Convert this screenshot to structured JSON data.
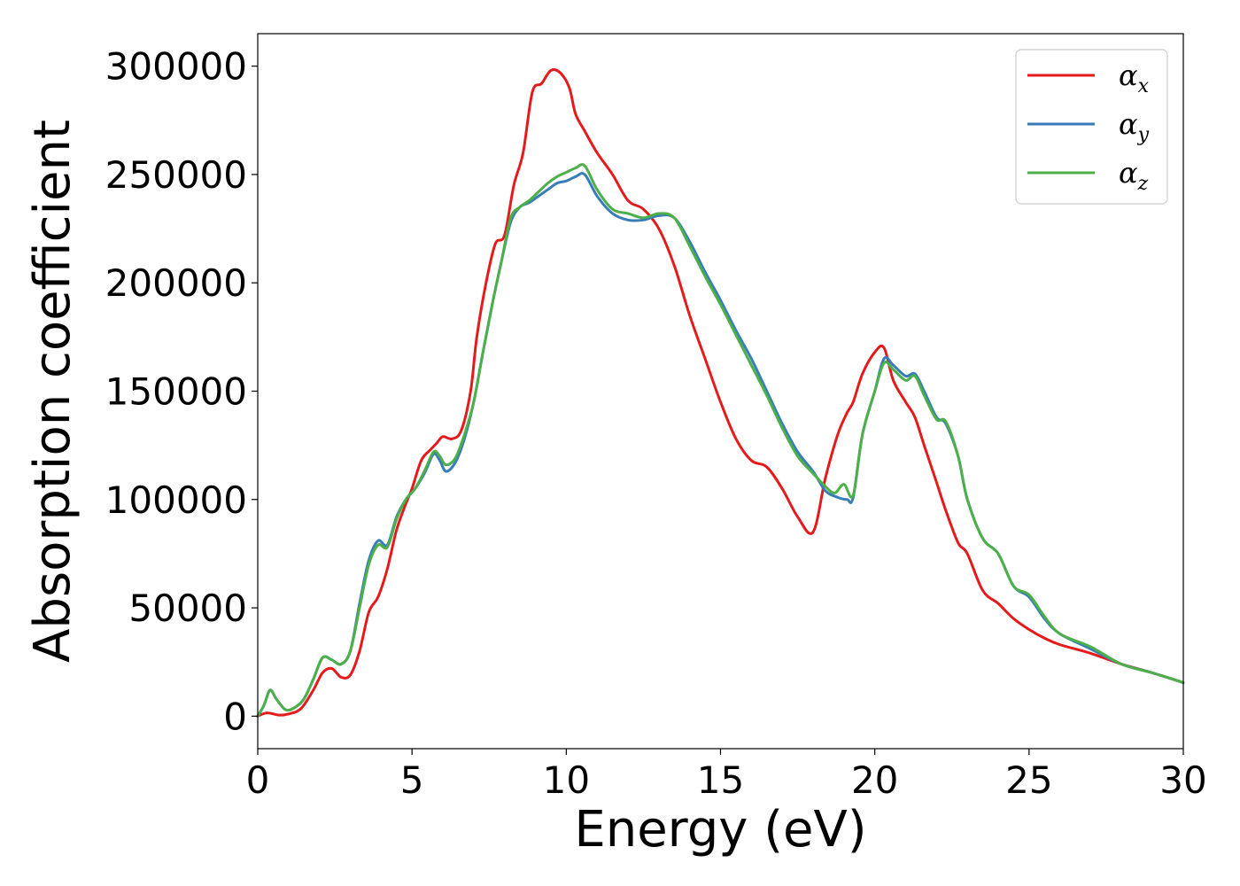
{
  "chart_data": {
    "type": "line",
    "xlabel": "Energy (eV)",
    "ylabel": "Absorption coefficient",
    "xlim": [
      0,
      30
    ],
    "ylim": [
      -15000,
      315000
    ],
    "xticks": [
      0,
      5,
      10,
      15,
      20,
      25,
      30
    ],
    "xtick_labels": [
      "0",
      "5",
      "10",
      "15",
      "20",
      "25",
      "30"
    ],
    "yticks": [
      0,
      50000,
      100000,
      150000,
      200000,
      250000,
      300000
    ],
    "ytick_labels": [
      "0",
      "50000",
      "100000",
      "150000",
      "200000",
      "250000",
      "300000"
    ],
    "grid": false,
    "legend_position": "top-right",
    "series": [
      {
        "name": "α_x",
        "symbol": "α",
        "subscript": "x",
        "color": "#e41a1c",
        "x": [
          0,
          0.3,
          0.7,
          1.0,
          1.4,
          1.8,
          2.1,
          2.4,
          2.7,
          3.0,
          3.3,
          3.6,
          3.9,
          4.2,
          4.5,
          4.8,
          5.0,
          5.3,
          5.6,
          5.8,
          6.0,
          6.3,
          6.6,
          6.9,
          7.1,
          7.4,
          7.7,
          8.0,
          8.3,
          8.6,
          8.9,
          9.2,
          9.5,
          9.8,
          10.1,
          10.3,
          10.6,
          11.0,
          11.5,
          12.0,
          12.5,
          13.0,
          13.5,
          14.0,
          14.5,
          15.0,
          15.5,
          16.0,
          16.5,
          17.0,
          17.5,
          18.0,
          18.4,
          18.8,
          19.1,
          19.3,
          19.6,
          20.0,
          20.3,
          20.6,
          21.0,
          21.3,
          21.6,
          22.0,
          22.3,
          22.7,
          23.0,
          23.5,
          24.0,
          24.5,
          25.0,
          25.5,
          26.0,
          27.0,
          28.0,
          29.0,
          30.0
        ],
        "y": [
          0,
          1500,
          500,
          1000,
          3500,
          12000,
          20000,
          22000,
          18000,
          19000,
          30000,
          48000,
          55000,
          68000,
          86000,
          98000,
          105000,
          118000,
          123000,
          126000,
          129000,
          128000,
          132000,
          150000,
          175000,
          200000,
          218000,
          222000,
          245000,
          260000,
          288000,
          292000,
          298000,
          297000,
          290000,
          278000,
          270000,
          260000,
          250000,
          238000,
          234000,
          225000,
          208000,
          185000,
          165000,
          145000,
          128000,
          118000,
          115000,
          105000,
          92000,
          85000,
          110000,
          130000,
          140000,
          145000,
          158000,
          168000,
          170000,
          155000,
          145000,
          138000,
          125000,
          108000,
          95000,
          80000,
          75000,
          58000,
          52000,
          45000,
          40000,
          36000,
          33000,
          29000,
          24000,
          20000,
          15500
        ]
      },
      {
        "name": "α_y",
        "symbol": "α",
        "subscript": "y",
        "color": "#377eb8",
        "x": [
          0,
          0.2,
          0.4,
          0.6,
          0.9,
          1.2,
          1.5,
          1.8,
          2.1,
          2.4,
          2.7,
          3.0,
          3.3,
          3.6,
          3.9,
          4.2,
          4.5,
          4.8,
          5.1,
          5.4,
          5.7,
          5.9,
          6.1,
          6.4,
          6.7,
          7.0,
          7.3,
          7.6,
          7.9,
          8.2,
          8.5,
          8.8,
          9.1,
          9.4,
          9.7,
          10.0,
          10.3,
          10.6,
          11.0,
          11.5,
          12.0,
          12.5,
          13.0,
          13.5,
          14.0,
          14.5,
          15.0,
          15.5,
          16.0,
          16.5,
          17.0,
          17.5,
          18.0,
          18.4,
          18.8,
          19.1,
          19.3,
          19.6,
          20.0,
          20.3,
          20.6,
          21.0,
          21.3,
          21.6,
          22.0,
          22.3,
          22.7,
          23.0,
          23.5,
          24.0,
          24.5,
          25.0,
          25.5,
          26.0,
          27.0,
          28.0,
          29.0,
          30.0
        ],
        "y": [
          0,
          5000,
          12000,
          8000,
          3000,
          4000,
          8000,
          17000,
          27000,
          26000,
          24000,
          30000,
          52000,
          72000,
          81000,
          79000,
          92000,
          100000,
          105000,
          112000,
          121000,
          118000,
          113000,
          117000,
          128000,
          145000,
          168000,
          190000,
          210000,
          228000,
          235000,
          237000,
          240000,
          243000,
          246000,
          247000,
          249000,
          250000,
          240000,
          232000,
          229000,
          229000,
          231000,
          230000,
          219000,
          205000,
          192000,
          178000,
          165000,
          150000,
          135000,
          122000,
          113000,
          104000,
          101000,
          100000,
          101000,
          130000,
          150000,
          165000,
          162000,
          157000,
          158000,
          150000,
          138000,
          135000,
          120000,
          100000,
          82000,
          75000,
          60000,
          55000,
          45000,
          38000,
          31000,
          24000,
          20000,
          15500
        ]
      },
      {
        "name": "α_z",
        "symbol": "α",
        "subscript": "z",
        "color": "#4daf4a",
        "x": [
          0,
          0.2,
          0.4,
          0.6,
          0.9,
          1.2,
          1.5,
          1.8,
          2.1,
          2.4,
          2.7,
          3.0,
          3.3,
          3.6,
          3.9,
          4.2,
          4.5,
          4.8,
          5.1,
          5.4,
          5.7,
          5.9,
          6.1,
          6.4,
          6.7,
          7.0,
          7.3,
          7.6,
          7.9,
          8.2,
          8.5,
          8.8,
          9.1,
          9.4,
          9.7,
          10.0,
          10.3,
          10.6,
          11.0,
          11.5,
          12.0,
          12.5,
          13.0,
          13.5,
          14.0,
          14.5,
          15.0,
          15.5,
          16.0,
          16.5,
          17.0,
          17.5,
          18.0,
          18.4,
          18.7,
          19.0,
          19.3,
          19.6,
          20.0,
          20.3,
          20.6,
          21.0,
          21.3,
          21.6,
          22.0,
          22.3,
          22.7,
          23.0,
          23.5,
          24.0,
          24.5,
          25.0,
          25.5,
          26.0,
          27.0,
          28.0,
          29.0,
          30.0
        ],
        "y": [
          0,
          5000,
          12000,
          8000,
          3000,
          4000,
          8000,
          17000,
          27000,
          26000,
          24000,
          30000,
          50000,
          70000,
          79000,
          78000,
          91000,
          100000,
          105000,
          113000,
          122000,
          120000,
          116000,
          119000,
          130000,
          145000,
          168000,
          190000,
          210000,
          230000,
          235000,
          238000,
          242000,
          246000,
          249000,
          251000,
          253000,
          254000,
          243000,
          234000,
          232000,
          230000,
          232000,
          230000,
          217000,
          203000,
          190000,
          176000,
          162000,
          148000,
          133000,
          120000,
          112000,
          106000,
          103000,
          107000,
          102000,
          130000,
          150000,
          163000,
          160000,
          155000,
          157000,
          148000,
          137000,
          136000,
          120000,
          100000,
          82000,
          75000,
          60000,
          56000,
          46000,
          38000,
          32000,
          24000,
          20000,
          15500
        ]
      }
    ]
  }
}
